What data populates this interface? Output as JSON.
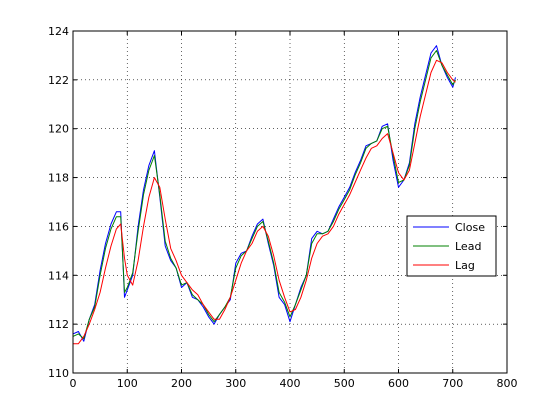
{
  "chart_data": {
    "type": "line",
    "title": "",
    "xlabel": "",
    "ylabel": "",
    "xlim": [
      0,
      800
    ],
    "ylim": [
      110,
      124
    ],
    "x_ticks": [
      "0",
      "100",
      "200",
      "300",
      "400",
      "500",
      "600",
      "700",
      "800"
    ],
    "y_ticks": [
      "110",
      "112",
      "114",
      "116",
      "118",
      "120",
      "122",
      "124"
    ],
    "grid": true,
    "legend_position": "right",
    "series": [
      {
        "name": "Close",
        "color": "#0000ff",
        "points": [
          [
            0,
            111.6
          ],
          [
            10,
            111.7
          ],
          [
            20,
            111.3
          ],
          [
            30,
            112.2
          ],
          [
            40,
            112.8
          ],
          [
            50,
            114.2
          ],
          [
            60,
            115.3
          ],
          [
            70,
            116.1
          ],
          [
            80,
            116.6
          ],
          [
            88,
            116.6
          ],
          [
            95,
            113.1
          ],
          [
            100,
            113.4
          ],
          [
            110,
            114.0
          ],
          [
            120,
            116.0
          ],
          [
            130,
            117.5
          ],
          [
            140,
            118.5
          ],
          [
            150,
            119.1
          ],
          [
            160,
            117.2
          ],
          [
            170,
            115.2
          ],
          [
            180,
            114.6
          ],
          [
            190,
            114.3
          ],
          [
            200,
            113.5
          ],
          [
            210,
            113.7
          ],
          [
            220,
            113.1
          ],
          [
            230,
            113.0
          ],
          [
            240,
            112.7
          ],
          [
            250,
            112.3
          ],
          [
            260,
            112.0
          ],
          [
            270,
            112.4
          ],
          [
            280,
            112.7
          ],
          [
            290,
            113.0
          ],
          [
            300,
            114.5
          ],
          [
            310,
            114.9
          ],
          [
            320,
            115.0
          ],
          [
            330,
            115.6
          ],
          [
            340,
            116.1
          ],
          [
            350,
            116.3
          ],
          [
            360,
            115.3
          ],
          [
            370,
            114.4
          ],
          [
            380,
            113.1
          ],
          [
            390,
            112.8
          ],
          [
            400,
            112.1
          ],
          [
            410,
            112.8
          ],
          [
            420,
            113.5
          ],
          [
            430,
            114.0
          ],
          [
            440,
            115.5
          ],
          [
            450,
            115.8
          ],
          [
            460,
            115.7
          ],
          [
            470,
            115.8
          ],
          [
            480,
            116.3
          ],
          [
            490,
            116.8
          ],
          [
            500,
            117.2
          ],
          [
            510,
            117.6
          ],
          [
            520,
            118.2
          ],
          [
            530,
            118.7
          ],
          [
            540,
            119.3
          ],
          [
            550,
            119.4
          ],
          [
            560,
            119.5
          ],
          [
            570,
            120.1
          ],
          [
            580,
            120.2
          ],
          [
            590,
            118.7
          ],
          [
            600,
            117.6
          ],
          [
            610,
            117.9
          ],
          [
            620,
            118.6
          ],
          [
            630,
            120.2
          ],
          [
            640,
            121.3
          ],
          [
            650,
            122.2
          ],
          [
            660,
            123.1
          ],
          [
            670,
            123.4
          ],
          [
            680,
            122.6
          ],
          [
            690,
            122.1
          ],
          [
            700,
            121.7
          ],
          [
            705,
            122.1
          ]
        ]
      },
      {
        "name": "Lead",
        "color": "#008000",
        "points": [
          [
            0,
            111.5
          ],
          [
            10,
            111.6
          ],
          [
            20,
            111.4
          ],
          [
            30,
            112.2
          ],
          [
            40,
            112.7
          ],
          [
            50,
            114.0
          ],
          [
            60,
            115.1
          ],
          [
            70,
            115.9
          ],
          [
            80,
            116.4
          ],
          [
            88,
            116.4
          ],
          [
            95,
            113.3
          ],
          [
            100,
            113.5
          ],
          [
            110,
            114.1
          ],
          [
            120,
            115.8
          ],
          [
            130,
            117.3
          ],
          [
            140,
            118.3
          ],
          [
            150,
            118.9
          ],
          [
            160,
            117.3
          ],
          [
            170,
            115.4
          ],
          [
            180,
            114.7
          ],
          [
            190,
            114.3
          ],
          [
            200,
            113.6
          ],
          [
            210,
            113.7
          ],
          [
            220,
            113.2
          ],
          [
            230,
            113.0
          ],
          [
            240,
            112.8
          ],
          [
            250,
            112.4
          ],
          [
            260,
            112.1
          ],
          [
            270,
            112.4
          ],
          [
            280,
            112.7
          ],
          [
            290,
            113.1
          ],
          [
            300,
            114.3
          ],
          [
            310,
            114.8
          ],
          [
            320,
            115.0
          ],
          [
            330,
            115.5
          ],
          [
            340,
            116.0
          ],
          [
            350,
            116.2
          ],
          [
            360,
            115.4
          ],
          [
            370,
            114.5
          ],
          [
            380,
            113.3
          ],
          [
            390,
            112.9
          ],
          [
            400,
            112.3
          ],
          [
            410,
            112.8
          ],
          [
            420,
            113.4
          ],
          [
            430,
            114.0
          ],
          [
            440,
            115.3
          ],
          [
            450,
            115.7
          ],
          [
            460,
            115.7
          ],
          [
            470,
            115.8
          ],
          [
            480,
            116.2
          ],
          [
            490,
            116.7
          ],
          [
            500,
            117.1
          ],
          [
            510,
            117.5
          ],
          [
            520,
            118.1
          ],
          [
            530,
            118.6
          ],
          [
            540,
            119.2
          ],
          [
            550,
            119.4
          ],
          [
            560,
            119.5
          ],
          [
            570,
            120.0
          ],
          [
            580,
            120.1
          ],
          [
            590,
            118.9
          ],
          [
            600,
            117.8
          ],
          [
            610,
            117.9
          ],
          [
            620,
            118.5
          ],
          [
            630,
            120.0
          ],
          [
            640,
            121.1
          ],
          [
            650,
            122.0
          ],
          [
            660,
            122.9
          ],
          [
            670,
            123.2
          ],
          [
            680,
            122.6
          ],
          [
            690,
            122.2
          ],
          [
            700,
            121.8
          ],
          [
            705,
            122.0
          ]
        ]
      },
      {
        "name": "Lag",
        "color": "#ff0000",
        "points": [
          [
            0,
            111.2
          ],
          [
            10,
            111.2
          ],
          [
            20,
            111.5
          ],
          [
            30,
            112.0
          ],
          [
            40,
            112.6
          ],
          [
            50,
            113.3
          ],
          [
            60,
            114.3
          ],
          [
            70,
            115.2
          ],
          [
            80,
            115.9
          ],
          [
            88,
            116.1
          ],
          [
            95,
            114.7
          ],
          [
            100,
            114.0
          ],
          [
            110,
            113.6
          ],
          [
            120,
            114.6
          ],
          [
            130,
            116.0
          ],
          [
            140,
            117.2
          ],
          [
            150,
            118.0
          ],
          [
            160,
            117.6
          ],
          [
            170,
            116.3
          ],
          [
            180,
            115.1
          ],
          [
            190,
            114.6
          ],
          [
            200,
            114.0
          ],
          [
            210,
            113.7
          ],
          [
            220,
            113.4
          ],
          [
            230,
            113.2
          ],
          [
            240,
            112.8
          ],
          [
            250,
            112.5
          ],
          [
            260,
            112.2
          ],
          [
            270,
            112.2
          ],
          [
            280,
            112.6
          ],
          [
            290,
            113.1
          ],
          [
            300,
            113.8
          ],
          [
            310,
            114.5
          ],
          [
            320,
            115.0
          ],
          [
            330,
            115.3
          ],
          [
            340,
            115.8
          ],
          [
            350,
            116.0
          ],
          [
            360,
            115.6
          ],
          [
            370,
            114.8
          ],
          [
            380,
            113.8
          ],
          [
            390,
            113.1
          ],
          [
            400,
            112.5
          ],
          [
            410,
            112.6
          ],
          [
            420,
            113.1
          ],
          [
            430,
            113.8
          ],
          [
            440,
            114.7
          ],
          [
            450,
            115.3
          ],
          [
            460,
            115.6
          ],
          [
            470,
            115.7
          ],
          [
            480,
            116.0
          ],
          [
            490,
            116.5
          ],
          [
            500,
            116.9
          ],
          [
            510,
            117.3
          ],
          [
            520,
            117.8
          ],
          [
            530,
            118.3
          ],
          [
            540,
            118.8
          ],
          [
            550,
            119.2
          ],
          [
            560,
            119.3
          ],
          [
            570,
            119.6
          ],
          [
            580,
            119.8
          ],
          [
            590,
            119.0
          ],
          [
            600,
            118.2
          ],
          [
            610,
            117.9
          ],
          [
            620,
            118.3
          ],
          [
            630,
            119.4
          ],
          [
            640,
            120.5
          ],
          [
            650,
            121.4
          ],
          [
            660,
            122.3
          ],
          [
            670,
            122.8
          ],
          [
            680,
            122.7
          ],
          [
            690,
            122.3
          ],
          [
            700,
            122.0
          ],
          [
            705,
            121.9
          ]
        ]
      }
    ]
  }
}
